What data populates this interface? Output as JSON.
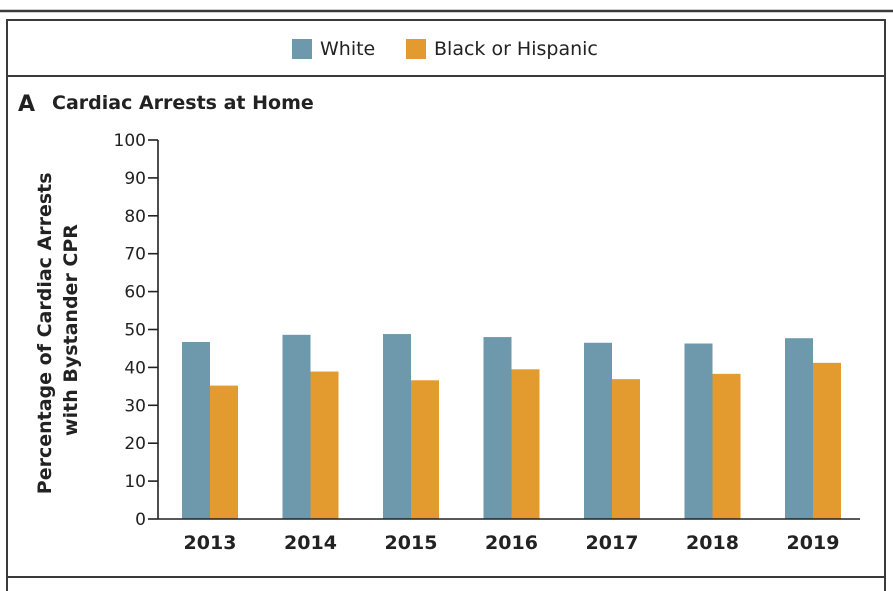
{
  "legend": {
    "items": [
      {
        "label": "White",
        "color": "#6e98ab"
      },
      {
        "label": "Black or Hispanic",
        "color": "#e39a2f"
      }
    ]
  },
  "panel": {
    "letter": "A",
    "title": "Cardiac Arrests at Home"
  },
  "chart_data": {
    "type": "bar",
    "title": "Cardiac Arrests at Home",
    "xlabel": "",
    "ylabel": "Percentage of Cardiac Arrests with Bystander CPR",
    "ylabel_lines": [
      "Percentage of Cardiac Arrests",
      "with Bystander CPR"
    ],
    "categories": [
      "2013",
      "2014",
      "2015",
      "2016",
      "2017",
      "2018",
      "2019"
    ],
    "series": [
      {
        "name": "White",
        "color": "#6e98ab",
        "values": [
          46.7,
          48.6,
          48.8,
          48.0,
          46.5,
          46.3,
          47.7
        ]
      },
      {
        "name": "Black or Hispanic",
        "color": "#e39a2f",
        "values": [
          35.2,
          38.9,
          36.6,
          39.5,
          36.9,
          38.3,
          41.2
        ]
      }
    ],
    "ylim": [
      0,
      100
    ],
    "yticks": [
      0,
      10,
      20,
      30,
      40,
      50,
      60,
      70,
      80,
      90,
      100
    ],
    "grid": false,
    "legend_position": "top-center"
  }
}
